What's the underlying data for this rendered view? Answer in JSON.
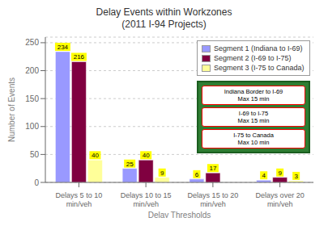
{
  "chart_data": {
    "type": "bar",
    "title": "Delay Events within Workzones\n(2011 I-94 Projects)",
    "xlabel": "Delay Thresholds",
    "ylabel": "Number of Events",
    "categories": [
      "Delays 5 to 10 min/veh",
      "Delays 10 to 15 min/veh",
      "Delays 15 to 20 min/veh",
      "Delays over 20 min/veh"
    ],
    "series": [
      {
        "name": "Segment 1 (Indiana to I-69)",
        "color": "#9999FF",
        "values": [
          234,
          25,
          6,
          4
        ]
      },
      {
        "name": "Segment 2 (I-69 to I-75)",
        "color": "#800040",
        "values": [
          216,
          40,
          17,
          9
        ]
      },
      {
        "name": "Segment 3 (I-75 to Canada)",
        "color": "#FFFF99",
        "values": [
          40,
          9,
          0,
          3
        ]
      }
    ],
    "ylim": [
      0,
      260
    ],
    "yticks": [
      0,
      50,
      100,
      150,
      200,
      250
    ],
    "grid": true,
    "legend": "upper right",
    "data_labels": true,
    "annotations": [
      "Indiana Border to I-69\nMax 15 min",
      "I-69 to I-75\nMax 15 min",
      "I-75 to Canada\nMax 10 min"
    ]
  }
}
